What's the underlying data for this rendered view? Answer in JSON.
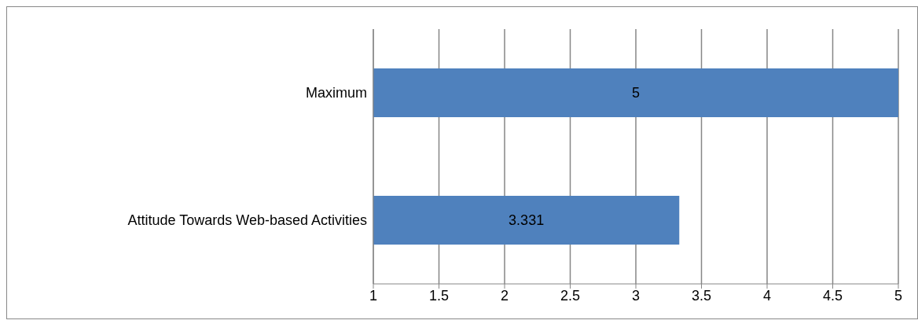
{
  "chart_data": {
    "type": "bar",
    "orientation": "horizontal",
    "categories": [
      "Maximum",
      "Attitude Towards Web-based Activities"
    ],
    "values": [
      5,
      3.331
    ],
    "color": "#4f81bd",
    "xlim": [
      1,
      5
    ],
    "xticks": [
      1,
      1.5,
      2,
      2.5,
      3,
      3.5,
      4,
      4.5,
      5
    ],
    "grid": "x",
    "data_labels": true
  }
}
